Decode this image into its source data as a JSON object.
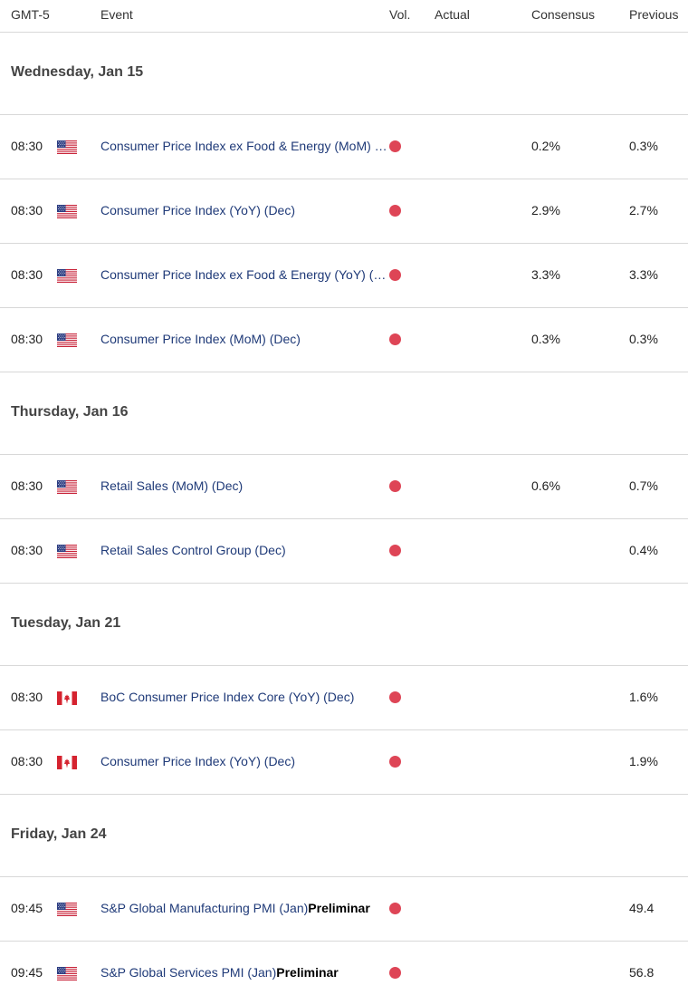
{
  "header": {
    "timezone": "GMT-5",
    "event": "Event",
    "vol": "Vol.",
    "actual": "Actual",
    "consensus": "Consensus",
    "previous": "Previous"
  },
  "colors": {
    "vol_high": "#de4556",
    "event_text": "#1f3a78",
    "divider": "#d8d8d8"
  },
  "days": [
    {
      "label": "Wednesday, Jan 15",
      "events": [
        {
          "time": "08:30",
          "country": "US",
          "flag_icon": "us-flag-icon",
          "event": "Consumer Price Index ex Food & Energy (MoM) (Dec)",
          "event_bold": "",
          "vol": "high",
          "actual": "",
          "consensus": "0.2%",
          "previous": "0.3%"
        },
        {
          "time": "08:30",
          "country": "US",
          "flag_icon": "us-flag-icon",
          "event": "Consumer Price Index (YoY) (Dec)",
          "event_bold": "",
          "vol": "high",
          "actual": "",
          "consensus": "2.9%",
          "previous": "2.7%"
        },
        {
          "time": "08:30",
          "country": "US",
          "flag_icon": "us-flag-icon",
          "event": "Consumer Price Index ex Food & Energy (YoY) (Dec)",
          "event_bold": "",
          "vol": "high",
          "actual": "",
          "consensus": "3.3%",
          "previous": "3.3%"
        },
        {
          "time": "08:30",
          "country": "US",
          "flag_icon": "us-flag-icon",
          "event": "Consumer Price Index (MoM) (Dec)",
          "event_bold": "",
          "vol": "high",
          "actual": "",
          "consensus": "0.3%",
          "previous": "0.3%"
        }
      ]
    },
    {
      "label": "Thursday, Jan 16",
      "events": [
        {
          "time": "08:30",
          "country": "US",
          "flag_icon": "us-flag-icon",
          "event": "Retail Sales (MoM) (Dec)",
          "event_bold": "",
          "vol": "high",
          "actual": "",
          "consensus": "0.6%",
          "previous": "0.7%"
        },
        {
          "time": "08:30",
          "country": "US",
          "flag_icon": "us-flag-icon",
          "event": "Retail Sales Control Group (Dec)",
          "event_bold": "",
          "vol": "high",
          "actual": "",
          "consensus": "",
          "previous": "0.4%"
        }
      ]
    },
    {
      "label": "Tuesday, Jan 21",
      "events": [
        {
          "time": "08:30",
          "country": "CA",
          "flag_icon": "ca-flag-icon",
          "event": "BoC Consumer Price Index Core (YoY) (Dec)",
          "event_bold": "",
          "vol": "high",
          "actual": "",
          "consensus": "",
          "previous": "1.6%"
        },
        {
          "time": "08:30",
          "country": "CA",
          "flag_icon": "ca-flag-icon",
          "event": "Consumer Price Index (YoY) (Dec)",
          "event_bold": "",
          "vol": "high",
          "actual": "",
          "consensus": "",
          "previous": "1.9%"
        }
      ]
    },
    {
      "label": "Friday, Jan 24",
      "events": [
        {
          "time": "09:45",
          "country": "US",
          "flag_icon": "us-flag-icon",
          "event": "S&P Global Manufacturing PMI (Jan)",
          "event_bold": "Preliminar",
          "vol": "high",
          "actual": "",
          "consensus": "",
          "previous": "49.4"
        },
        {
          "time": "09:45",
          "country": "US",
          "flag_icon": "us-flag-icon",
          "event": "S&P Global Services PMI (Jan)",
          "event_bold": "Preliminar",
          "vol": "high",
          "actual": "",
          "consensus": "",
          "previous": "56.8"
        }
      ]
    }
  ]
}
